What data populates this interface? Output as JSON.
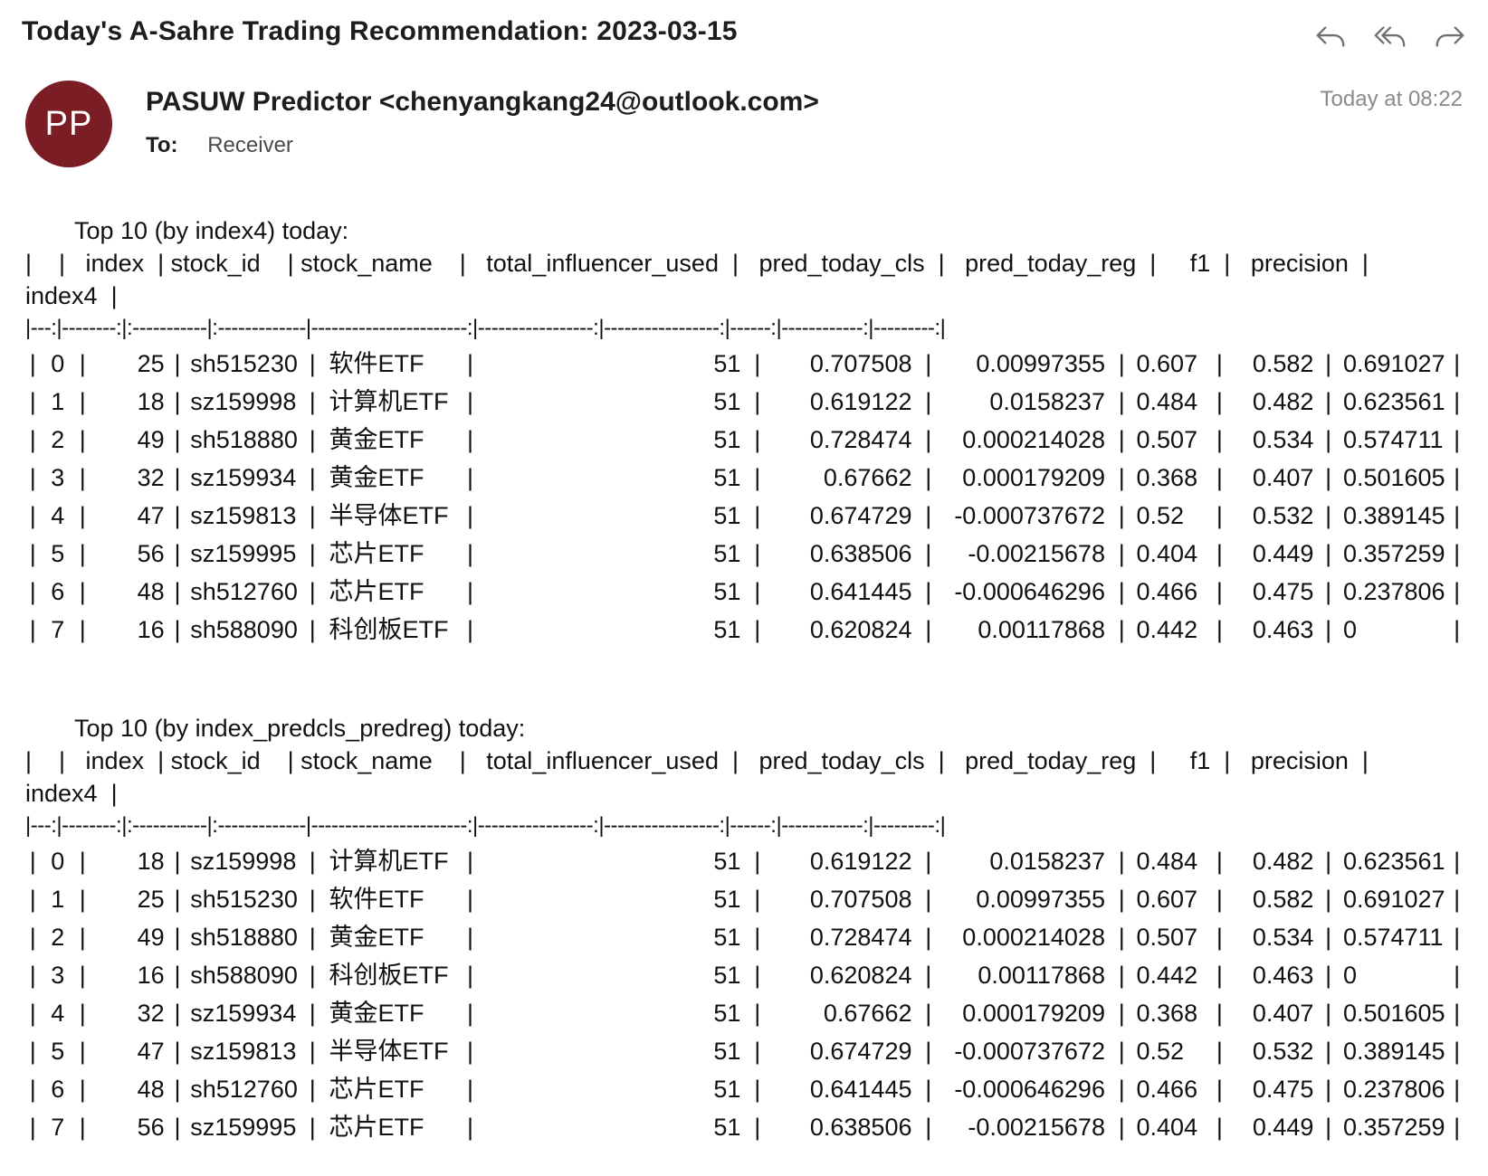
{
  "email": {
    "subject": "Today's A-Sahre Trading Recommendation: 2023-03-15",
    "sender": "PASUW Predictor <chenyangkang24@outlook.com>",
    "avatar_initials": "PP",
    "avatar_color": "#7a1d24",
    "to_label": "To:",
    "to_value": "Receiver",
    "time": "Today at 08:22",
    "actions": [
      "reply-icon",
      "reply-all-icon",
      "forward-icon"
    ]
  },
  "header_line_1": "|    |   index  | stock_id    | stock_name    |   total_influencer_used  |   pred_today_cls  |   pred_today_reg  |     f1  |   precision  |",
  "header_line_2": "index4  |",
  "separator": "|---:|--------:|:-----------|:-------------|-----------------------:|-----------------:|-----------------:|------:|------------:|---------:|",
  "sections": [
    {
      "title": "Top 10 (by index4) today:",
      "rows": [
        {
          "row": "0",
          "index": "25",
          "stock_id": "sh515230",
          "stock_name": "软件ETF",
          "total_influencer_used": "51",
          "pred_today_cls": "0.707508",
          "pred_today_reg": "0.00997355",
          "f1": "0.607",
          "precision": "0.582",
          "index4": "0.691027"
        },
        {
          "row": "1",
          "index": "18",
          "stock_id": "sz159998",
          "stock_name": "计算机ETF",
          "total_influencer_used": "51",
          "pred_today_cls": "0.619122",
          "pred_today_reg": "0.0158237",
          "f1": "0.484",
          "precision": "0.482",
          "index4": "0.623561"
        },
        {
          "row": "2",
          "index": "49",
          "stock_id": "sh518880",
          "stock_name": "黄金ETF",
          "total_influencer_used": "51",
          "pred_today_cls": "0.728474",
          "pred_today_reg": "0.000214028",
          "f1": "0.507",
          "precision": "0.534",
          "index4": "0.574711"
        },
        {
          "row": "3",
          "index": "32",
          "stock_id": "sz159934",
          "stock_name": "黄金ETF",
          "total_influencer_used": "51",
          "pred_today_cls": "0.67662",
          "pred_today_reg": "0.000179209",
          "f1": "0.368",
          "precision": "0.407",
          "index4": "0.501605"
        },
        {
          "row": "4",
          "index": "47",
          "stock_id": "sz159813",
          "stock_name": "半导体ETF",
          "total_influencer_used": "51",
          "pred_today_cls": "0.674729",
          "pred_today_reg": "-0.000737672",
          "f1": "0.52",
          "precision": "0.532",
          "index4": "0.389145"
        },
        {
          "row": "5",
          "index": "56",
          "stock_id": "sz159995",
          "stock_name": "芯片ETF",
          "total_influencer_used": "51",
          "pred_today_cls": "0.638506",
          "pred_today_reg": "-0.00215678",
          "f1": "0.404",
          "precision": "0.449",
          "index4": "0.357259"
        },
        {
          "row": "6",
          "index": "48",
          "stock_id": "sh512760",
          "stock_name": "芯片ETF",
          "total_influencer_used": "51",
          "pred_today_cls": "0.641445",
          "pred_today_reg": "-0.000646296",
          "f1": "0.466",
          "precision": "0.475",
          "index4": "0.237806"
        },
        {
          "row": "7",
          "index": "16",
          "stock_id": "sh588090",
          "stock_name": "科创板ETF",
          "total_influencer_used": "51",
          "pred_today_cls": "0.620824",
          "pred_today_reg": "0.00117868",
          "f1": "0.442",
          "precision": "0.463",
          "index4": "0"
        }
      ]
    },
    {
      "title": "Top 10 (by index_predcls_predreg) today:",
      "rows": [
        {
          "row": "0",
          "index": "18",
          "stock_id": "sz159998",
          "stock_name": "计算机ETF",
          "total_influencer_used": "51",
          "pred_today_cls": "0.619122",
          "pred_today_reg": "0.0158237",
          "f1": "0.484",
          "precision": "0.482",
          "index4": "0.623561"
        },
        {
          "row": "1",
          "index": "25",
          "stock_id": "sh515230",
          "stock_name": "软件ETF",
          "total_influencer_used": "51",
          "pred_today_cls": "0.707508",
          "pred_today_reg": "0.00997355",
          "f1": "0.607",
          "precision": "0.582",
          "index4": "0.691027"
        },
        {
          "row": "2",
          "index": "49",
          "stock_id": "sh518880",
          "stock_name": "黄金ETF",
          "total_influencer_used": "51",
          "pred_today_cls": "0.728474",
          "pred_today_reg": "0.000214028",
          "f1": "0.507",
          "precision": "0.534",
          "index4": "0.574711"
        },
        {
          "row": "3",
          "index": "16",
          "stock_id": "sh588090",
          "stock_name": "科创板ETF",
          "total_influencer_used": "51",
          "pred_today_cls": "0.620824",
          "pred_today_reg": "0.00117868",
          "f1": "0.442",
          "precision": "0.463",
          "index4": "0"
        },
        {
          "row": "4",
          "index": "32",
          "stock_id": "sz159934",
          "stock_name": "黄金ETF",
          "total_influencer_used": "51",
          "pred_today_cls": "0.67662",
          "pred_today_reg": "0.000179209",
          "f1": "0.368",
          "precision": "0.407",
          "index4": "0.501605"
        },
        {
          "row": "5",
          "index": "47",
          "stock_id": "sz159813",
          "stock_name": "半导体ETF",
          "total_influencer_used": "51",
          "pred_today_cls": "0.674729",
          "pred_today_reg": "-0.000737672",
          "f1": "0.52",
          "precision": "0.532",
          "index4": "0.389145"
        },
        {
          "row": "6",
          "index": "48",
          "stock_id": "sh512760",
          "stock_name": "芯片ETF",
          "total_influencer_used": "51",
          "pred_today_cls": "0.641445",
          "pred_today_reg": "-0.000646296",
          "f1": "0.466",
          "precision": "0.475",
          "index4": "0.237806"
        },
        {
          "row": "7",
          "index": "56",
          "stock_id": "sz159995",
          "stock_name": "芯片ETF",
          "total_influencer_used": "51",
          "pred_today_cls": "0.638506",
          "pred_today_reg": "-0.00215678",
          "f1": "0.404",
          "precision": "0.449",
          "index4": "0.357259"
        }
      ]
    }
  ]
}
